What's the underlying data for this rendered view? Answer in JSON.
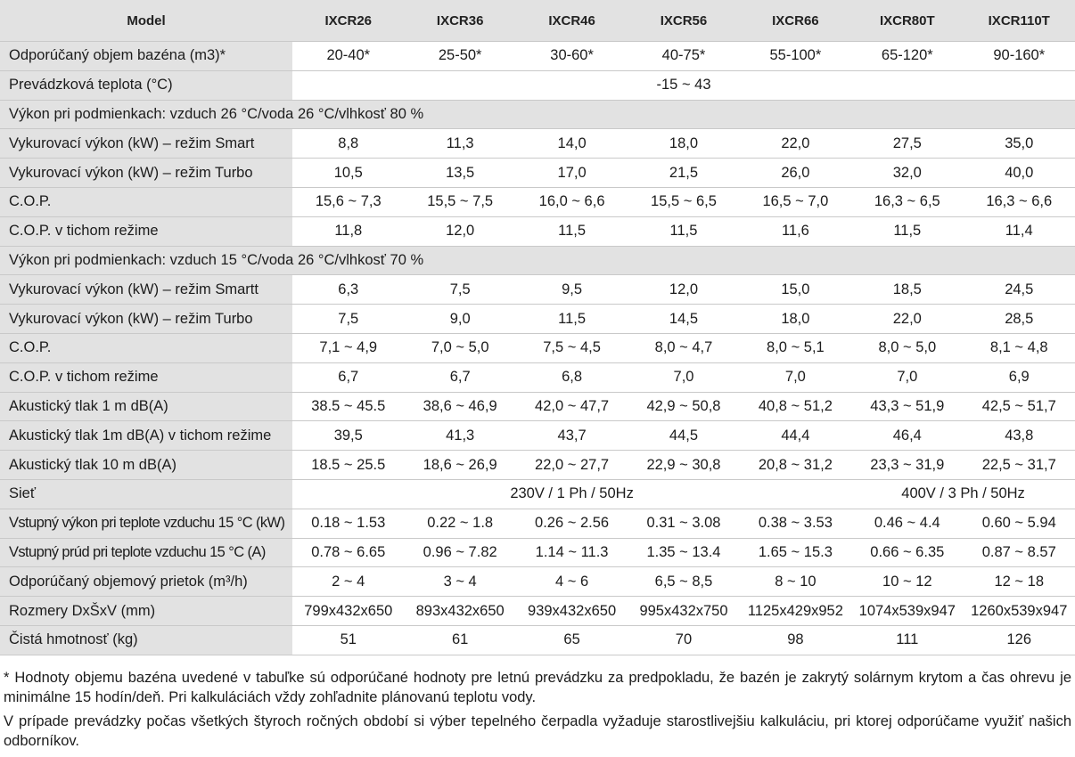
{
  "table": {
    "header": [
      "Model",
      "IXCR26",
      "IXCR36",
      "IXCR46",
      "IXCR56",
      "IXCR66",
      "IXCR80T",
      "IXCR110T"
    ],
    "rows": [
      {
        "label": "Odporúčaný objem bazéna (m3)*",
        "values": [
          "20-40*",
          "25-50*",
          "30-60*",
          "40-75*",
          "55-100*",
          "65-120*",
          "90-160*"
        ]
      },
      {
        "label": "Prevádzková teplota (°C)",
        "merged": "-15 ~ 43"
      },
      {
        "section": "Výkon pri podmienkach: vzduch 26 °C/voda 26 °C/vlhkosť 80 %"
      },
      {
        "label": "Vykurovací výkon (kW) – režim Smart",
        "values": [
          "8,8",
          "11,3",
          "14,0",
          "18,0",
          "22,0",
          "27,5",
          "35,0"
        ]
      },
      {
        "label": "Vykurovací výkon (kW) – režim Turbo",
        "values": [
          "10,5",
          "13,5",
          "17,0",
          "21,5",
          "26,0",
          "32,0",
          "40,0"
        ]
      },
      {
        "label": "C.O.P.",
        "values": [
          "15,6 ~ 7,3",
          "15,5 ~ 7,5",
          "16,0 ~ 6,6",
          "15,5 ~ 6,5",
          "16,5 ~ 7,0",
          "16,3 ~ 6,5",
          "16,3 ~ 6,6"
        ]
      },
      {
        "label": "C.O.P. v tichom režime",
        "values": [
          "11,8",
          "12,0",
          "11,5",
          "11,5",
          "11,6",
          "11,5",
          "11,4"
        ]
      },
      {
        "section": "Výkon pri podmienkach: vzduch 15 °C/voda 26 °C/vlhkosť 70 %"
      },
      {
        "label": "Vykurovací výkon (kW) – režim Smartt",
        "values": [
          "6,3",
          "7,5",
          "9,5",
          "12,0",
          "15,0",
          "18,5",
          "24,5"
        ]
      },
      {
        "label": "Vykurovací výkon (kW) – režim Turbo",
        "values": [
          "7,5",
          "9,0",
          "11,5",
          "14,5",
          "18,0",
          "22,0",
          "28,5"
        ]
      },
      {
        "label": "C.O.P.",
        "values": [
          "7,1 ~ 4,9",
          "7,0 ~ 5,0",
          "7,5 ~ 4,5",
          "8,0 ~ 4,7",
          "8,0 ~ 5,1",
          "8,0 ~ 5,0",
          "8,1 ~ 4,8"
        ]
      },
      {
        "label": "C.O.P. v tichom režime",
        "values": [
          "6,7",
          "6,7",
          "6,8",
          "7,0",
          "7,0",
          "7,0",
          "6,9"
        ]
      },
      {
        "label": "Akustický tlak 1 m dB(A)",
        "values": [
          "38.5 ~ 45.5",
          "38,6 ~ 46,9",
          "42,0 ~ 47,7",
          "42,9 ~ 50,8",
          "40,8 ~ 51,2",
          "43,3 ~ 51,9",
          "42,5 ~ 51,7"
        ]
      },
      {
        "label": "Akustický tlak 1m dB(A) v tichom režime",
        "values": [
          "39,5",
          "41,3",
          "43,7",
          "44,5",
          "44,4",
          "46,4",
          "43,8"
        ]
      },
      {
        "label": "Akustický tlak 10 m dB(A)",
        "values": [
          "18.5 ~ 25.5",
          "18,6 ~ 26,9",
          "22,0 ~ 27,7",
          "22,9 ~ 30,8",
          "20,8 ~ 31,2",
          "23,3 ~ 31,9",
          "22,5 ~ 31,7"
        ]
      },
      {
        "label": "Sieť",
        "split": [
          "230V / 1 Ph / 50Hz",
          "400V / 3 Ph / 50Hz"
        ]
      },
      {
        "label": "Vstupný výkon pri teplote vzduchu 15 °C (kW)",
        "narrow": true,
        "values": [
          "0.18 ~ 1.53",
          "0.22 ~ 1.8",
          "0.26 ~ 2.56",
          "0.31 ~ 3.08",
          "0.38 ~ 3.53",
          "0.46 ~ 4.4",
          "0.60 ~ 5.94"
        ]
      },
      {
        "label": "Vstupný prúd pri teplote vzduchu 15 °C (A)",
        "narrow": true,
        "values": [
          "0.78 ~ 6.65",
          "0.96 ~ 7.82",
          "1.14 ~ 11.3",
          "1.35 ~ 13.4",
          "1.65 ~ 15.3",
          "0.66 ~ 6.35",
          "0.87 ~ 8.57"
        ]
      },
      {
        "label": "Odporúčaný objemový prietok (m³/h)",
        "values": [
          "2 ~ 4",
          "3 ~ 4",
          "4 ~ 6",
          "6,5 ~ 8,5",
          "8 ~ 10",
          "10 ~ 12",
          "12 ~ 18"
        ]
      },
      {
        "label": "Rozmery DxŠxV (mm)",
        "values": [
          "799x432x650",
          "893x432x650",
          "939x432x650",
          "995x432x750",
          "1125x429x952",
          "1074x539x947",
          "1260x539x947"
        ]
      },
      {
        "label": "Čistá hmotnosť (kg)",
        "values": [
          "51",
          "61",
          "65",
          "70",
          "98",
          "111",
          "126"
        ]
      }
    ]
  },
  "footnotes": [
    "* Hodnoty objemu bazéna uvedené v tabuľke sú odporúčané hodnoty pre letnú prevádzku za predpokladu, že bazén je zakrytý solárnym krytom a čas ohrevu je minimálne 15 hodín/deň. Pri kalkuláciách vždy zohľadnite plánovanú teplotu vody.",
    "V prípade prevádzky počas všetkých štyroch ročných období si výber tepelného čerpadla vyžaduje starostlivejšiu kalkuláciu, pri ktorej odporúčame využiť našich odborníkov."
  ]
}
